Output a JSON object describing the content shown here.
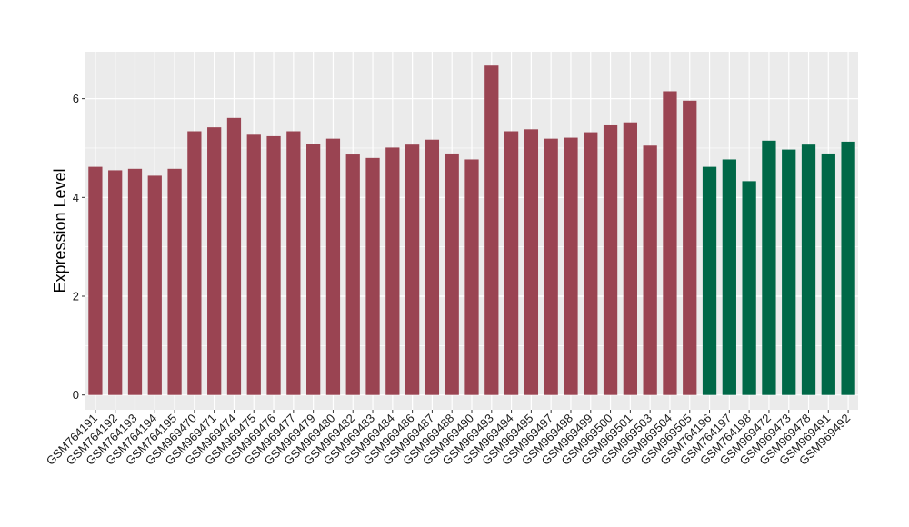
{
  "chart_data": {
    "type": "bar",
    "title": "",
    "xlabel": "",
    "ylabel": "Expression Level",
    "ylim": [
      -0.3,
      6.95
    ],
    "yticks": [
      0,
      2,
      4,
      6
    ],
    "grid": true,
    "panel_background": "#ebebeb",
    "colors": {
      "group_1": "#9a4452",
      "group_2": "#006847",
      "grid": "#ffffff"
    },
    "categories": [
      "GSM764191",
      "GSM764192",
      "GSM764193",
      "GSM764194",
      "GSM764195",
      "GSM969470",
      "GSM969471",
      "GSM969474",
      "GSM969475",
      "GSM969476",
      "GSM969477",
      "GSM969479",
      "GSM969480",
      "GSM969482",
      "GSM969483",
      "GSM969484",
      "GSM969486",
      "GSM969487",
      "GSM969488",
      "GSM969490",
      "GSM969493",
      "GSM969494",
      "GSM969495",
      "GSM969497",
      "GSM969498",
      "GSM969499",
      "GSM969500",
      "GSM969501",
      "GSM969503",
      "GSM969504",
      "GSM969505",
      "GSM764196",
      "GSM764197",
      "GSM764198",
      "GSM969472",
      "GSM969473",
      "GSM969478",
      "GSM969491",
      "GSM969492"
    ],
    "values": [
      4.62,
      4.55,
      4.58,
      4.44,
      4.58,
      5.34,
      5.42,
      5.61,
      5.27,
      5.24,
      5.34,
      5.09,
      5.19,
      4.87,
      4.8,
      5.01,
      5.07,
      5.17,
      4.89,
      4.77,
      6.67,
      5.34,
      5.38,
      5.19,
      5.21,
      5.32,
      5.46,
      5.52,
      5.05,
      6.15,
      5.96,
      4.62,
      4.77,
      4.33,
      5.15,
      4.97,
      5.07,
      4.89,
      5.13
    ],
    "groups": [
      1,
      1,
      1,
      1,
      1,
      1,
      1,
      1,
      1,
      1,
      1,
      1,
      1,
      1,
      1,
      1,
      1,
      1,
      1,
      1,
      1,
      1,
      1,
      1,
      1,
      1,
      1,
      1,
      1,
      1,
      1,
      2,
      2,
      2,
      2,
      2,
      2,
      2,
      2
    ]
  }
}
